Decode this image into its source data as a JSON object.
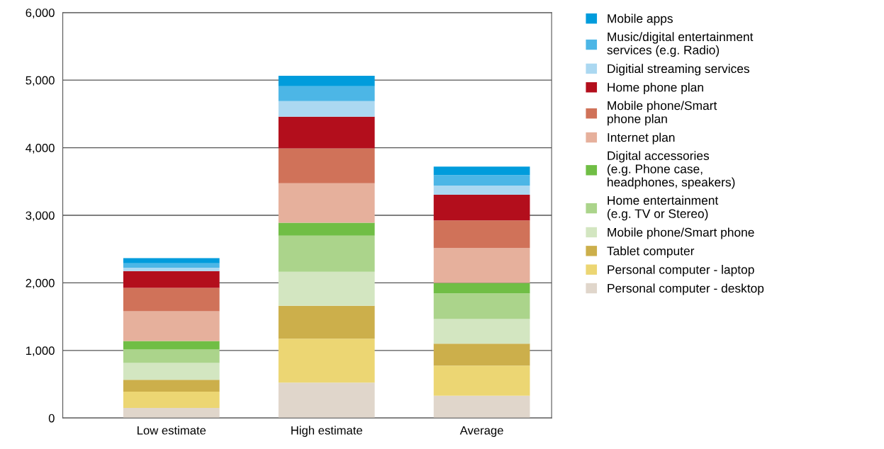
{
  "chart_data": {
    "type": "bar",
    "stacked": true,
    "categories": [
      "Low estimate",
      "High estimate",
      "Average"
    ],
    "ylim": [
      0,
      6000
    ],
    "yticks": [
      {
        "value": 0,
        "label": "0"
      },
      {
        "value": 1000,
        "label": "1,000"
      },
      {
        "value": 2000,
        "label": "2,000"
      },
      {
        "value": 3000,
        "label": "3,000"
      },
      {
        "value": 4000,
        "label": "4,000"
      },
      {
        "value": 5000,
        "label": "5,000"
      },
      {
        "value": 6000,
        "label": "6,000"
      }
    ],
    "grid": "y",
    "legend": "right",
    "series": [
      {
        "name": "Personal computer - desktop",
        "color": "#e0d6cb",
        "values": [
          150,
          525,
          330
        ]
      },
      {
        "name": "Personal computer - laptop",
        "color": "#ecd673",
        "values": [
          240,
          650,
          445
        ]
      },
      {
        "name": "Tablet computer",
        "color": "#ccaf4b",
        "values": [
          175,
          485,
          325
        ]
      },
      {
        "name": "Mobile phone/Smart phone",
        "color": "#d3e6c1",
        "values": [
          250,
          505,
          365
        ]
      },
      {
        "name": "Home entertainment\n(e.g. TV or Stereo)",
        "color": "#abd48b",
        "values": [
          200,
          535,
          380
        ]
      },
      {
        "name": "Digital accessories\n(e.g. Phone case,\nheadphones, speakers)",
        "color": "#70be45",
        "values": [
          125,
          190,
          155
        ]
      },
      {
        "name": "Internet plan",
        "color": "#e6b09c",
        "values": [
          440,
          585,
          515
        ]
      },
      {
        "name": "Mobile phone/Smart\nphone plan",
        "color": "#d07259",
        "values": [
          345,
          515,
          410
        ]
      },
      {
        "name": "Home phone plan",
        "color": "#b30e1c",
        "values": [
          250,
          470,
          380
        ]
      },
      {
        "name": "Digitial streaming services",
        "color": "#abd8f1",
        "values": [
          50,
          230,
          135
        ]
      },
      {
        "name": "Music/digital entertainment\nservices (e.g. Radio)",
        "color": "#4cb6e6",
        "values": [
          65,
          220,
          155
        ]
      },
      {
        "name": "Mobile apps",
        "color": "#009cdc",
        "values": [
          75,
          155,
          125
        ]
      }
    ]
  }
}
